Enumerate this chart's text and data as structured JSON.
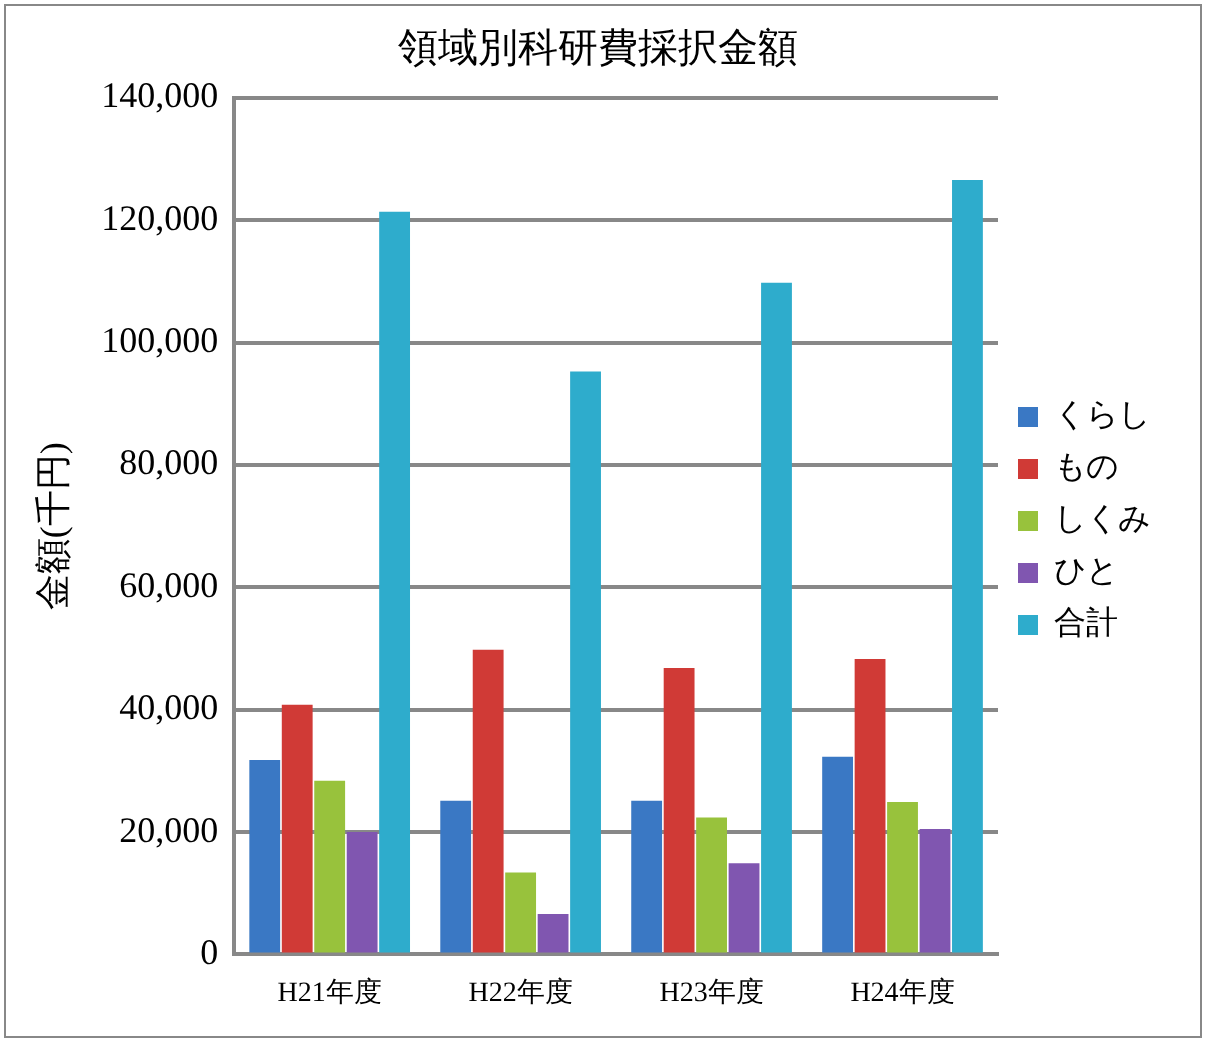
{
  "chart_data": {
    "type": "bar",
    "title": "領域別科研費採択金額",
    "ylabel": "金額(千円)",
    "categories": [
      "H21年度",
      "H22年度",
      "H23年度",
      "H24年度"
    ],
    "series": [
      {
        "name": "くらし",
        "color": "#3a78c4",
        "values": [
          31800,
          25100,
          25100,
          32300
        ]
      },
      {
        "name": "もの",
        "color": "#d03a36",
        "values": [
          40800,
          49800,
          46800,
          48300
        ]
      },
      {
        "name": "しくみ",
        "color": "#98c23c",
        "values": [
          28400,
          13400,
          22400,
          24900
        ]
      },
      {
        "name": "ひと",
        "color": "#8056b0",
        "values": [
          20000,
          6600,
          14900,
          20500
        ]
      },
      {
        "name": "合計",
        "color": "#2eaccc",
        "values": [
          121400,
          95300,
          109800,
          126600
        ]
      }
    ],
    "ylim": [
      0,
      140000
    ],
    "yticks": [
      0,
      {
        "value": 20000,
        "label": "20,000"
      },
      {
        "value": 40000,
        "label": "40,000"
      },
      {
        "value": 60000,
        "label": "60,000"
      },
      {
        "value": 80000,
        "label": "80,000"
      },
      {
        "value": 100000,
        "label": "100,000"
      },
      {
        "value": 120000,
        "label": "120,000"
      },
      {
        "value": 140000,
        "label": "140,000"
      }
    ],
    "grid": "y",
    "legend": "right"
  }
}
